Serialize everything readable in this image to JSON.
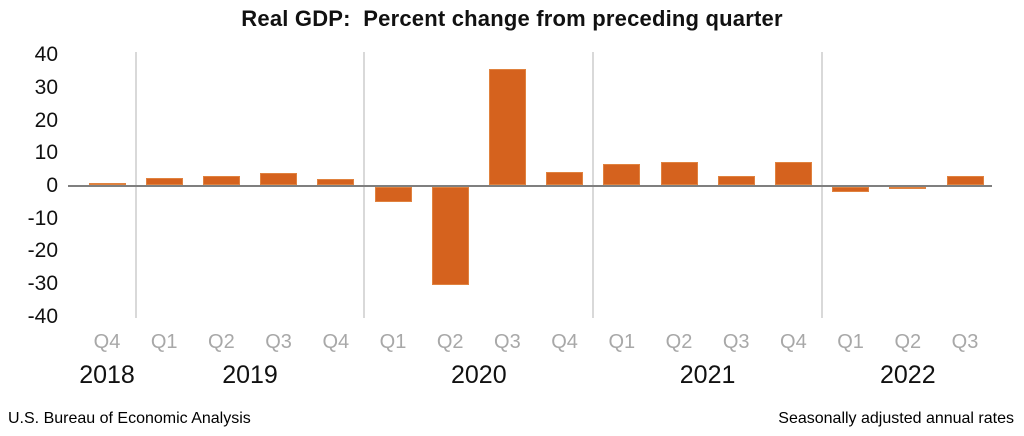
{
  "title": "Real GDP:  Percent change from preceding quarter",
  "footer": {
    "left": "U.S. Bureau of Economic Analysis",
    "right": "Seasonally adjusted annual rates"
  },
  "colors": {
    "bar": "#d5621e",
    "bar_border": "#e0823f",
    "zero_line": "#7f7f7f",
    "year_gridline": "#d9d9d9",
    "quarter_label": "#a8a8a8",
    "text": "#111111"
  },
  "chart_data": {
    "type": "bar",
    "title": "Real GDP:  Percent change from preceding quarter",
    "xlabel": "",
    "ylabel": "",
    "ylim": [
      -40,
      40
    ],
    "y_ticks": [
      40,
      30,
      20,
      10,
      0,
      -10,
      -20,
      -30,
      -40
    ],
    "grid": "vertical separators between years only",
    "legend_position": "none",
    "categories": [
      "Q4",
      "Q1",
      "Q2",
      "Q3",
      "Q4",
      "Q1",
      "Q2",
      "Q3",
      "Q4",
      "Q1",
      "Q2",
      "Q3",
      "Q4",
      "Q1",
      "Q2",
      "Q3"
    ],
    "values": [
      0.7,
      2.2,
      2.7,
      3.6,
      1.8,
      -4.6,
      -29.9,
      35.3,
      3.9,
      6.3,
      7.0,
      2.7,
      7.0,
      -1.6,
      -0.6,
      2.6
    ],
    "year_groups": [
      {
        "label": "2018",
        "quarters": 1
      },
      {
        "label": "2019",
        "quarters": 4
      },
      {
        "label": "2020",
        "quarters": 4
      },
      {
        "label": "2021",
        "quarters": 4
      },
      {
        "label": "2022",
        "quarters": 3
      }
    ]
  }
}
